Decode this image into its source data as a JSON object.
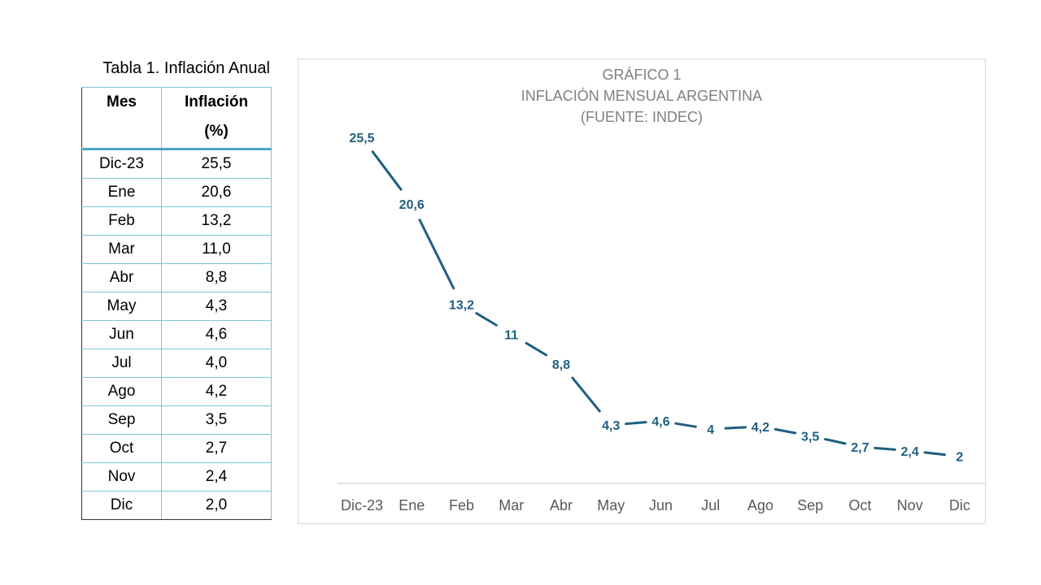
{
  "table": {
    "caption": "Tabla 1. Inflación Anual",
    "headers": {
      "month": "Mes",
      "inflation_line1": "Inflación",
      "inflation_line2": "(%)"
    },
    "rows": [
      {
        "month": "Dic-23",
        "value": "25,5"
      },
      {
        "month": "Ene",
        "value": "20,6"
      },
      {
        "month": "Feb",
        "value": "13,2"
      },
      {
        "month": "Mar",
        "value": "11,0"
      },
      {
        "month": "Abr",
        "value": "8,8"
      },
      {
        "month": "May",
        "value": "4,3"
      },
      {
        "month": "Jun",
        "value": "4,6"
      },
      {
        "month": "Jul",
        "value": "4,0"
      },
      {
        "month": "Ago",
        "value": "4,2"
      },
      {
        "month": "Sep",
        "value": "3,5"
      },
      {
        "month": "Oct",
        "value": "2,7"
      },
      {
        "month": "Nov",
        "value": "2,4"
      },
      {
        "month": "Dic",
        "value": "2,0"
      }
    ]
  },
  "chart_data": {
    "type": "line",
    "title": [
      "GRÁFICO 1",
      "INFLACIÓN MENSUAL ARGENTINA",
      "(FUENTE: INDEC)"
    ],
    "categories": [
      "Dic-23",
      "Ene",
      "Feb",
      "Mar",
      "Abr",
      "May",
      "Jun",
      "Jul",
      "Ago",
      "Sep",
      "Oct",
      "Nov",
      "Dic"
    ],
    "series": [
      {
        "values": [
          25.5,
          20.6,
          13.2,
          11,
          8.8,
          4.3,
          4.6,
          4,
          4.2,
          3.5,
          2.7,
          2.4,
          2
        ],
        "labels": [
          "25,5",
          "20,6",
          "13,2",
          "11",
          "8,8",
          "4,3",
          "4,6",
          "4",
          "4,2",
          "3,5",
          "2,7",
          "2,4",
          "2"
        ],
        "color": "#1f5f7f"
      }
    ],
    "ylim": [
      0,
      27
    ],
    "grid": false,
    "legend": "none",
    "axis_color": "#d9d9d9",
    "tick_label_color": "#595959"
  }
}
